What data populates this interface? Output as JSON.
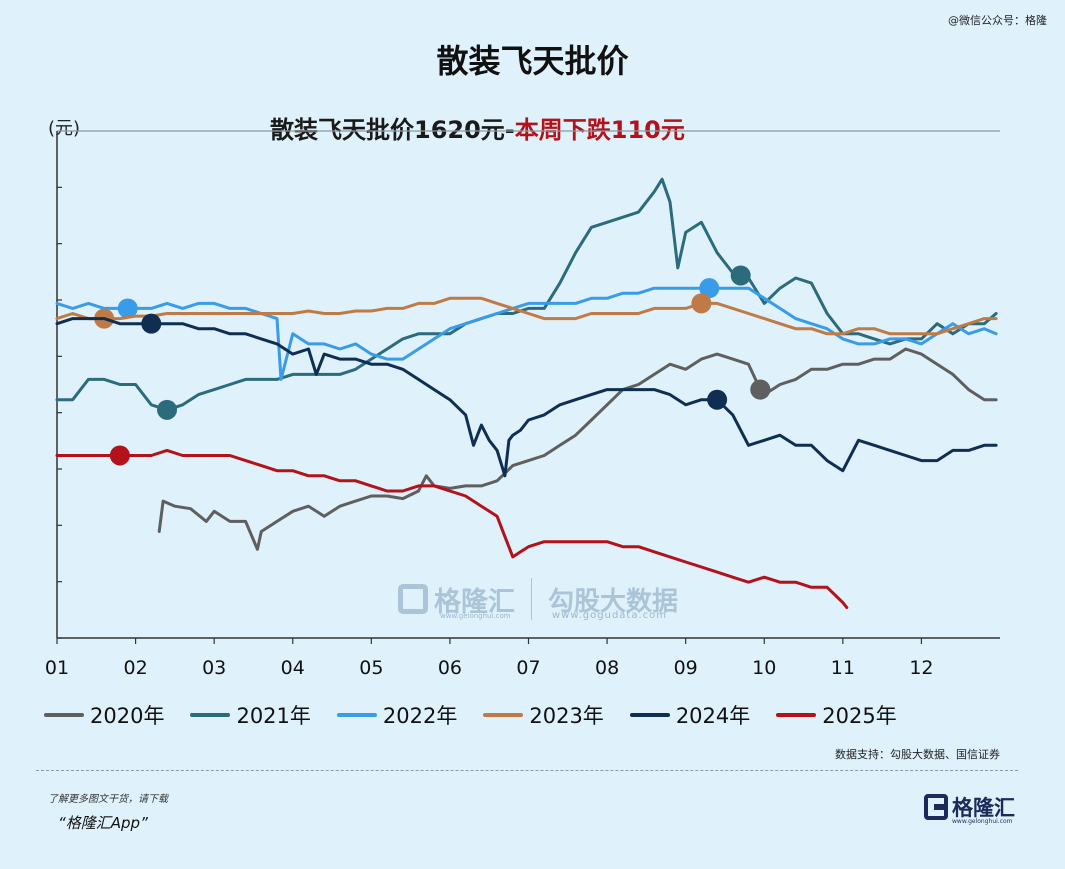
{
  "header": {
    "watermark_top": "@微信公众号：格隆",
    "title": "散装飞天批价",
    "subtitle_part1": "散装飞天批价1620元-",
    "subtitle_part2": "本周下跌110元",
    "y_unit": "(元)"
  },
  "footer": {
    "source": "数据支持：勾股大数据、国信证券",
    "promo_line1": "了解更多图文干货，请下载",
    "promo_line2": "“格隆汇App”",
    "brand_name": "格隆汇",
    "brand_url": "www.gelonghui.com"
  },
  "watermark": {
    "brand": "格隆汇",
    "brand_url": "www.gelonghui.com",
    "data_brand": "勾股大数据",
    "data_url": "www.gogudata.com"
  },
  "chart_data": {
    "type": "line",
    "title": "散装飞天批价",
    "subtitle": "散装飞天批价1620元-本周下跌110元",
    "ylabel": "(元)",
    "xlabel": "",
    "x_ticks": [
      "01",
      "02",
      "03",
      "04",
      "05",
      "06",
      "07",
      "08",
      "09",
      "10",
      "11",
      "12"
    ],
    "xlim": [
      1,
      13
    ],
    "ylim": [
      0,
      10
    ],
    "y_tick_labels_visible": false,
    "grid": "top line only",
    "legend_position": "bottom",
    "colors": {
      "2020年": "#5f5f5f",
      "2021年": "#2c6b7c",
      "2022年": "#3a9be8",
      "2023年": "#c07a45",
      "2024年": "#0f2e52",
      "2025年": "#b4121a"
    },
    "series": [
      {
        "name": "2020年",
        "x": [
          2.3,
          2.35,
          2.5,
          2.7,
          2.9,
          3.0,
          3.2,
          3.4,
          3.55,
          3.6,
          3.8,
          4.0,
          4.2,
          4.4,
          4.6,
          4.8,
          5.0,
          5.2,
          5.4,
          5.6,
          5.7,
          5.8,
          6.0,
          6.2,
          6.4,
          6.6,
          6.8,
          7.0,
          7.2,
          7.4,
          7.6,
          7.8,
          8.0,
          8.2,
          8.4,
          8.6,
          8.8,
          9.0,
          9.2,
          9.4,
          9.6,
          9.8,
          9.95,
          10.0,
          10.2,
          10.4,
          10.6,
          10.8,
          11.0,
          11.2,
          11.4,
          11.6,
          11.8,
          12.0,
          12.2,
          12.4,
          12.6,
          12.8,
          12.95
        ],
        "y": [
          2.1,
          2.7,
          2.6,
          2.55,
          2.3,
          2.5,
          2.3,
          2.3,
          1.75,
          2.1,
          2.3,
          2.5,
          2.6,
          2.4,
          2.6,
          2.7,
          2.8,
          2.8,
          2.75,
          2.9,
          3.2,
          3.0,
          2.95,
          3.0,
          3.0,
          3.1,
          3.4,
          3.5,
          3.6,
          3.8,
          4.0,
          4.3,
          4.6,
          4.9,
          5.0,
          5.2,
          5.4,
          5.3,
          5.5,
          5.6,
          5.5,
          5.4,
          4.9,
          4.8,
          5.0,
          5.1,
          5.3,
          5.3,
          5.4,
          5.4,
          5.5,
          5.5,
          5.7,
          5.6,
          5.4,
          5.2,
          4.9,
          4.7,
          4.7
        ]
      },
      {
        "name": "2021年",
        "x": [
          1.0,
          1.2,
          1.4,
          1.6,
          1.8,
          2.0,
          2.2,
          2.4,
          2.6,
          2.8,
          3.0,
          3.2,
          3.4,
          3.6,
          3.8,
          4.0,
          4.2,
          4.4,
          4.6,
          4.8,
          5.0,
          5.2,
          5.4,
          5.6,
          5.8,
          6.0,
          6.2,
          6.4,
          6.6,
          6.8,
          7.0,
          7.2,
          7.4,
          7.6,
          7.8,
          8.0,
          8.2,
          8.4,
          8.6,
          8.7,
          8.8,
          8.9,
          9.0,
          9.2,
          9.4,
          9.6,
          9.8,
          10.0,
          10.2,
          10.4,
          10.6,
          10.8,
          11.0,
          11.2,
          11.4,
          11.6,
          11.8,
          12.0,
          12.2,
          12.4,
          12.6,
          12.8,
          12.95
        ],
        "y": [
          4.7,
          4.7,
          5.1,
          5.1,
          5.0,
          5.0,
          4.6,
          4.5,
          4.6,
          4.8,
          4.9,
          5.0,
          5.1,
          5.1,
          5.1,
          5.2,
          5.2,
          5.2,
          5.2,
          5.3,
          5.5,
          5.7,
          5.9,
          6.0,
          6.0,
          6.0,
          6.2,
          6.3,
          6.4,
          6.4,
          6.5,
          6.5,
          7.0,
          7.6,
          8.1,
          8.2,
          8.3,
          8.4,
          8.8,
          9.05,
          8.6,
          7.3,
          8.0,
          8.2,
          7.6,
          7.2,
          7.1,
          6.6,
          6.9,
          7.1,
          7.0,
          6.4,
          6.0,
          6.0,
          5.9,
          5.8,
          5.9,
          5.9,
          6.2,
          6.0,
          6.2,
          6.2,
          6.4
        ]
      },
      {
        "name": "2022年",
        "x": [
          1.0,
          1.2,
          1.4,
          1.6,
          1.8,
          2.0,
          2.2,
          2.4,
          2.6,
          2.8,
          3.0,
          3.2,
          3.4,
          3.6,
          3.8,
          3.85,
          4.0,
          4.2,
          4.4,
          4.6,
          4.8,
          5.0,
          5.2,
          5.4,
          5.6,
          5.8,
          6.0,
          6.2,
          6.4,
          6.6,
          6.8,
          7.0,
          7.2,
          7.4,
          7.6,
          7.8,
          8.0,
          8.2,
          8.4,
          8.6,
          8.8,
          9.0,
          9.2,
          9.4,
          9.6,
          9.8,
          10.0,
          10.2,
          10.4,
          10.6,
          10.8,
          11.0,
          11.2,
          11.4,
          11.6,
          11.8,
          12.0,
          12.2,
          12.4,
          12.6,
          12.8,
          12.95
        ],
        "y": [
          6.6,
          6.5,
          6.6,
          6.5,
          6.5,
          6.5,
          6.5,
          6.6,
          6.5,
          6.6,
          6.6,
          6.5,
          6.5,
          6.4,
          6.3,
          5.1,
          6.0,
          5.8,
          5.8,
          5.7,
          5.8,
          5.6,
          5.5,
          5.5,
          5.7,
          5.9,
          6.1,
          6.2,
          6.3,
          6.4,
          6.5,
          6.6,
          6.6,
          6.6,
          6.6,
          6.7,
          6.7,
          6.8,
          6.8,
          6.9,
          6.9,
          6.9,
          6.9,
          6.9,
          6.9,
          6.9,
          6.7,
          6.5,
          6.3,
          6.2,
          6.1,
          5.9,
          5.8,
          5.8,
          5.9,
          5.9,
          5.8,
          6.0,
          6.2,
          6.0,
          6.1,
          6.0
        ]
      },
      {
        "name": "2023年",
        "x": [
          1.0,
          1.2,
          1.4,
          1.6,
          1.8,
          2.0,
          2.2,
          2.4,
          2.6,
          2.8,
          3.0,
          3.2,
          3.4,
          3.6,
          3.8,
          4.0,
          4.2,
          4.4,
          4.6,
          4.8,
          5.0,
          5.2,
          5.4,
          5.6,
          5.8,
          6.0,
          6.2,
          6.4,
          6.6,
          6.8,
          7.0,
          7.2,
          7.4,
          7.6,
          7.8,
          8.0,
          8.2,
          8.4,
          8.6,
          8.8,
          9.0,
          9.2,
          9.4,
          9.6,
          9.8,
          10.0,
          10.2,
          10.4,
          10.6,
          10.8,
          11.0,
          11.2,
          11.4,
          11.6,
          11.8,
          12.0,
          12.2,
          12.4,
          12.6,
          12.8,
          12.95
        ],
        "y": [
          6.3,
          6.4,
          6.3,
          6.3,
          6.3,
          6.35,
          6.35,
          6.4,
          6.4,
          6.4,
          6.4,
          6.4,
          6.4,
          6.4,
          6.4,
          6.4,
          6.45,
          6.4,
          6.4,
          6.45,
          6.45,
          6.5,
          6.5,
          6.6,
          6.6,
          6.7,
          6.7,
          6.7,
          6.6,
          6.5,
          6.4,
          6.3,
          6.3,
          6.3,
          6.4,
          6.4,
          6.4,
          6.4,
          6.5,
          6.5,
          6.5,
          6.6,
          6.6,
          6.5,
          6.4,
          6.3,
          6.2,
          6.1,
          6.1,
          6.0,
          6.0,
          6.1,
          6.1,
          6.0,
          6.0,
          6.0,
          6.0,
          6.1,
          6.2,
          6.3,
          6.3
        ]
      },
      {
        "name": "2024年",
        "x": [
          1.0,
          1.2,
          1.4,
          1.6,
          1.8,
          2.0,
          2.2,
          2.4,
          2.6,
          2.8,
          3.0,
          3.2,
          3.4,
          3.6,
          3.8,
          4.0,
          4.2,
          4.3,
          4.4,
          4.6,
          4.8,
          5.0,
          5.2,
          5.4,
          5.6,
          5.8,
          6.0,
          6.2,
          6.3,
          6.4,
          6.5,
          6.6,
          6.7,
          6.75,
          6.8,
          6.9,
          7.0,
          7.2,
          7.4,
          7.6,
          7.8,
          8.0,
          8.2,
          8.4,
          8.6,
          8.8,
          9.0,
          9.2,
          9.4,
          9.6,
          9.8,
          10.0,
          10.2,
          10.4,
          10.6,
          10.8,
          11.0,
          11.2,
          11.4,
          11.6,
          11.8,
          12.0,
          12.2,
          12.4,
          12.6,
          12.8,
          12.95
        ],
        "y": [
          6.2,
          6.3,
          6.3,
          6.3,
          6.2,
          6.2,
          6.2,
          6.2,
          6.2,
          6.1,
          6.1,
          6.0,
          6.0,
          5.9,
          5.8,
          5.6,
          5.7,
          5.2,
          5.6,
          5.5,
          5.5,
          5.4,
          5.4,
          5.3,
          5.1,
          4.9,
          4.7,
          4.4,
          3.8,
          4.2,
          3.9,
          3.7,
          3.2,
          3.9,
          4.0,
          4.1,
          4.3,
          4.4,
          4.6,
          4.7,
          4.8,
          4.9,
          4.9,
          4.9,
          4.9,
          4.8,
          4.6,
          4.7,
          4.7,
          4.4,
          3.8,
          3.9,
          4.0,
          3.8,
          3.8,
          3.5,
          3.3,
          3.9,
          3.8,
          3.7,
          3.6,
          3.5,
          3.5,
          3.7,
          3.7,
          3.8,
          3.8
        ]
      },
      {
        "name": "2025年",
        "x": [
          1.0,
          1.2,
          1.4,
          1.6,
          1.8,
          2.0,
          2.2,
          2.4,
          2.6,
          2.8,
          3.0,
          3.2,
          3.4,
          3.6,
          3.8,
          4.0,
          4.2,
          4.4,
          4.6,
          4.8,
          5.0,
          5.2,
          5.4,
          5.6,
          5.8,
          6.0,
          6.2,
          6.4,
          6.6,
          6.7,
          6.8,
          6.9,
          7.0,
          7.2,
          7.4,
          7.6,
          7.8,
          8.0,
          8.2,
          8.4,
          8.6,
          8.8,
          9.0,
          9.2,
          9.4,
          9.6,
          9.8,
          10.0,
          10.2,
          10.4,
          10.6,
          10.8,
          11.0,
          11.05
        ],
        "y": [
          3.6,
          3.6,
          3.6,
          3.6,
          3.6,
          3.6,
          3.6,
          3.7,
          3.6,
          3.6,
          3.6,
          3.6,
          3.5,
          3.4,
          3.3,
          3.3,
          3.2,
          3.2,
          3.1,
          3.1,
          3.0,
          2.9,
          2.9,
          3.0,
          3.0,
          2.9,
          2.8,
          2.6,
          2.4,
          2.0,
          1.6,
          1.7,
          1.8,
          1.9,
          1.9,
          1.9,
          1.9,
          1.9,
          1.8,
          1.8,
          1.7,
          1.6,
          1.5,
          1.4,
          1.3,
          1.2,
          1.1,
          1.2,
          1.1,
          1.1,
          1.0,
          1.0,
          0.7,
          0.6
        ]
      }
    ]
  }
}
